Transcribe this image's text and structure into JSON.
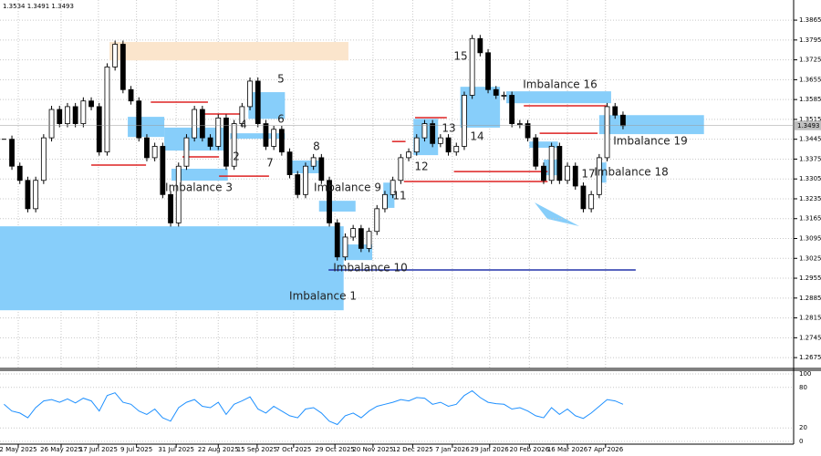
{
  "chart_data": [
    {
      "type": "candlestick",
      "header": "1.3534 1.3491 1.3493",
      "xlim": [
        0,
        100
      ],
      "xticks": [
        {
          "value": 2.3,
          "label": "2 May 2025"
        },
        {
          "value": 7.7,
          "label": "26 May 2025"
        },
        {
          "value": 12.4,
          "label": "17 Jun 2025"
        },
        {
          "value": 17.2,
          "label": "9 Jul 2025"
        },
        {
          "value": 22.2,
          "label": "31 Jul 2025"
        },
        {
          "value": 27.5,
          "label": "22 Aug 2025"
        },
        {
          "value": 32.4,
          "label": "15 Sep 2025"
        },
        {
          "value": 37,
          "label": "7 Oct 2025"
        },
        {
          "value": 42.2,
          "label": "29 Oct 2025"
        },
        {
          "value": 47,
          "label": "20 Nov 2025"
        },
        {
          "value": 52,
          "label": "12 Dec 2025"
        },
        {
          "value": 57,
          "label": "7 Jan 2026"
        },
        {
          "value": 61.7,
          "label": "29 Jan 2026"
        },
        {
          "value": 66.7,
          "label": "20 Feb 2026"
        },
        {
          "value": 71.5,
          "label": "16 Mar 2026"
        },
        {
          "value": 76.3,
          "label": "7 Apr 2026"
        }
      ],
      "ylim": [
        1.264,
        1.3936
      ],
      "yticks": [
        1.3865,
        1.3795,
        1.3725,
        1.3655,
        1.3585,
        1.3515,
        1.3445,
        1.3375,
        1.3305,
        1.3235,
        1.3165,
        1.3095,
        1.3025,
        1.2955,
        1.2885,
        1.2815,
        1.2745,
        1.2675
      ],
      "grid": true,
      "color": "#000000",
      "close": [
        1.3445,
        1.335,
        1.33,
        1.32,
        1.33,
        1.345,
        1.355,
        1.35,
        1.356,
        1.35,
        1.358,
        1.356,
        1.34,
        1.37,
        1.378,
        1.362,
        1.358,
        1.345,
        1.338,
        1.342,
        1.325,
        1.315,
        1.335,
        1.345,
        1.355,
        1.345,
        1.342,
        1.352,
        1.335,
        1.35,
        1.356,
        1.365,
        1.35,
        1.342,
        1.348,
        1.34,
        1.332,
        1.325,
        1.335,
        1.338,
        1.33,
        1.315,
        1.303,
        1.31,
        1.313,
        1.306,
        1.312,
        1.32,
        1.325,
        1.33,
        1.338,
        1.34,
        1.345,
        1.35,
        1.343,
        1.345,
        1.34,
        1.342,
        1.36,
        1.38,
        1.375,
        1.362,
        1.36,
        1.36,
        1.35,
        1.35,
        1.345,
        1.335,
        1.33,
        1.342,
        1.33,
        1.335,
        1.328,
        1.32,
        1.325,
        1.338,
        1.356,
        1.353,
        1.3493
      ],
      "zones": [
        {
          "top": 1.3138,
          "bottom": 1.2842,
          "from": 0,
          "to": 43.3,
          "color": "#87cefa"
        },
        {
          "top": 1.3788,
          "bottom": 1.3723,
          "from": 13.8,
          "to": 43.9,
          "color": "#fbe5cc"
        },
        {
          "top": 1.3614,
          "bottom": 1.3572,
          "from": 63.8,
          "to": 77,
          "color": "#87cefa"
        },
        {
          "top": 1.353,
          "bottom": 1.3463,
          "from": 75.5,
          "to": 88.7,
          "color": "#87cefa"
        },
        {
          "top": 1.3363,
          "bottom": 1.3292,
          "from": 75.3,
          "to": 76.4,
          "color": "#87cefa"
        },
        {
          "top": 1.3228,
          "bottom": 1.319,
          "from": 40.2,
          "to": 44.8,
          "color": "#87cefa"
        },
        {
          "top": 1.3074,
          "bottom": 1.3019,
          "from": 43.3,
          "to": 46.9,
          "color": "#87cefa"
        },
        {
          "top": 1.3524,
          "bottom": 1.3453,
          "from": 16.1,
          "to": 20.7,
          "color": "#87cefa"
        },
        {
          "top": 1.3486,
          "bottom": 1.3405,
          "from": 20.7,
          "to": 28.7,
          "color": "#87cefa"
        },
        {
          "top": 1.3341,
          "bottom": 1.3299,
          "from": 21.6,
          "to": 28.7,
          "color": "#87cefa"
        },
        {
          "top": 1.3611,
          "bottom": 1.3517,
          "from": 31.3,
          "to": 35.9,
          "color": "#87cefa"
        },
        {
          "top": 1.3466,
          "bottom": 1.3447,
          "from": 29,
          "to": 35.9,
          "color": "#87cefa"
        },
        {
          "top": 1.337,
          "bottom": 1.3325,
          "from": 36.8,
          "to": 40.5,
          "color": "#87cefa"
        },
        {
          "top": 1.3292,
          "bottom": 1.3203,
          "from": 48.3,
          "to": 49.7,
          "color": "#87cefa"
        },
        {
          "top": 1.3517,
          "bottom": 1.3389,
          "from": 52.1,
          "to": 55.2,
          "color": "#87cefa"
        },
        {
          "top": 1.363,
          "bottom": 1.3486,
          "from": 58,
          "to": 63,
          "color": "#87cefa"
        },
        {
          "top": 1.3437,
          "bottom": 1.3415,
          "from": 66.7,
          "to": 70.3,
          "color": "#87cefa"
        },
        {
          "top": 1.3373,
          "bottom": 1.3318,
          "from": 68.5,
          "to": 70.3,
          "color": "#87cefa"
        }
      ],
      "levels": [
        {
          "price": 1.3354,
          "from": 11.5,
          "to": 18.4,
          "color": "#dd2222"
        },
        {
          "price": 1.3576,
          "from": 19,
          "to": 26.2,
          "color": "#dd2222"
        },
        {
          "price": 1.3534,
          "from": 25.3,
          "to": 30.5,
          "color": "#dd2222"
        },
        {
          "price": 1.3383,
          "from": 23,
          "to": 27.6,
          "color": "#dd2222"
        },
        {
          "price": 1.3315,
          "from": 27.6,
          "to": 33.9,
          "color": "#dd2222"
        },
        {
          "price": 1.3437,
          "from": 49.4,
          "to": 51.1,
          "color": "#dd2222"
        },
        {
          "price": 1.3521,
          "from": 52.3,
          "to": 56.3,
          "color": "#dd2222"
        },
        {
          "price": 1.3331,
          "from": 57.2,
          "to": 69,
          "color": "#dd2222"
        },
        {
          "price": 1.3296,
          "from": 50.9,
          "to": 69,
          "color": "#dd2222"
        },
        {
          "price": 1.3563,
          "from": 66,
          "to": 76.4,
          "color": "#dd2222"
        },
        {
          "price": 1.3466,
          "from": 68,
          "to": 75.3,
          "color": "#dd2222"
        },
        {
          "price": 1.2984,
          "from": 41.4,
          "to": 80.1,
          "color": "#2233aa"
        }
      ],
      "annotations": [
        "Imbalance 1",
        "Imbalance 3",
        "2",
        "4",
        "5",
        "6",
        "7",
        "8",
        "Imbalance 9",
        "Imbalance 10",
        "11",
        "12",
        "13",
        "14",
        "15",
        "Imbalance 16",
        "17",
        "Imbalance 18",
        "Imbalance 19"
      ]
    },
    {
      "type": "line",
      "xlim": [
        0,
        100
      ],
      "ylim": [
        0,
        100
      ],
      "yticks": [
        100,
        80,
        20,
        0
      ],
      "color": "#1e90ff",
      "values": [
        55,
        45,
        42,
        35,
        50,
        60,
        62,
        58,
        63,
        57,
        64,
        60,
        45,
        68,
        72,
        58,
        55,
        45,
        40,
        48,
        35,
        30,
        50,
        58,
        62,
        52,
        50,
        58,
        40,
        55,
        60,
        66,
        48,
        42,
        52,
        45,
        38,
        35,
        48,
        50,
        42,
        30,
        25,
        38,
        42,
        35,
        45,
        52,
        55,
        58,
        62,
        60,
        65,
        64,
        55,
        58,
        52,
        55,
        68,
        75,
        65,
        58,
        56,
        55,
        48,
        50,
        45,
        38,
        35,
        50,
        40,
        48,
        38,
        34,
        42,
        52,
        62,
        60,
        55
      ]
    }
  ]
}
